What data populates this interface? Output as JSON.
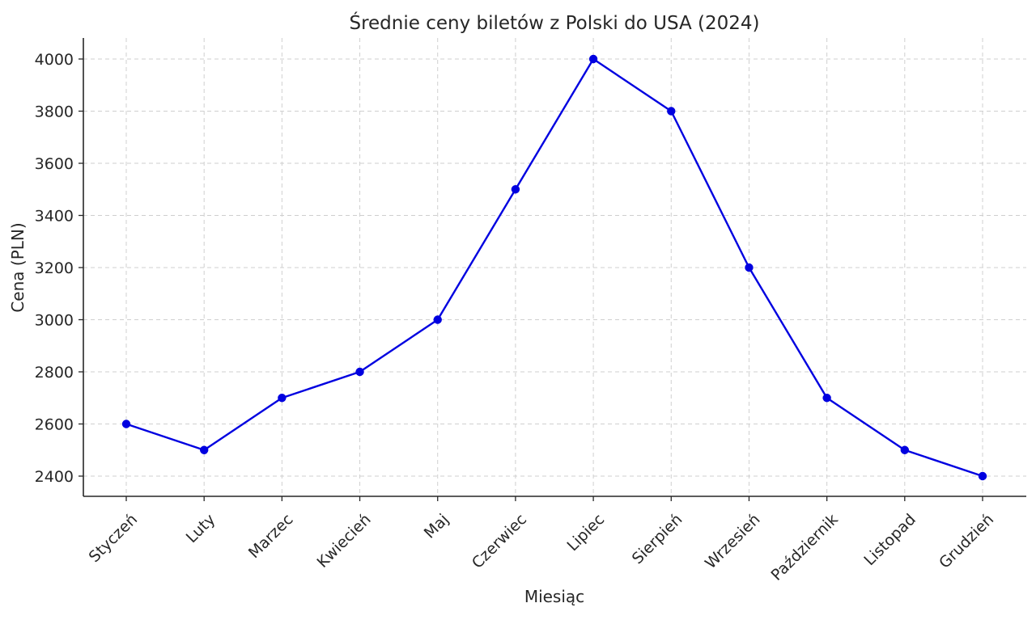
{
  "chart_data": {
    "type": "line",
    "title": "Średnie ceny biletów z Polski do USA (2024)",
    "xlabel": "Miesiąc",
    "ylabel": "Cena (PLN)",
    "categories": [
      "Styczeń",
      "Luty",
      "Marzec",
      "Kwiecień",
      "Maj",
      "Czerwiec",
      "Lipiec",
      "Sierpień",
      "Wrzesień",
      "Październik",
      "Listopad",
      "Grudzień"
    ],
    "series": [
      {
        "values": [
          2600,
          2500,
          2700,
          2800,
          3000,
          3500,
          4000,
          3800,
          3200,
          2700,
          2500,
          2400
        ],
        "color": "#0000e0",
        "marker": "circle"
      }
    ],
    "yticks": [
      2400,
      2600,
      2800,
      3000,
      3200,
      3400,
      3600,
      3800,
      4000
    ],
    "ylim": [
      2300,
      4080
    ],
    "grid": true,
    "legend": "none"
  }
}
